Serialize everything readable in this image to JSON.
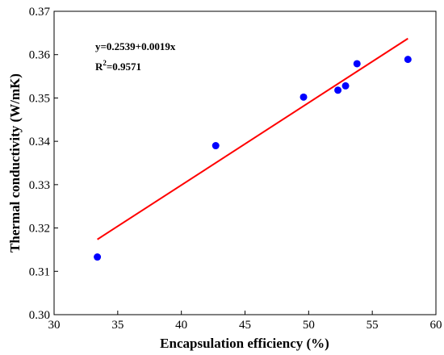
{
  "chart_data": {
    "type": "scatter",
    "xlabel": "Encapsulation efficiency (%)",
    "ylabel": "Thermal conductivity (W/mK)",
    "xlim": [
      30,
      60
    ],
    "ylim": [
      0.3,
      0.37
    ],
    "xticks": [
      "30",
      "35",
      "40",
      "45",
      "50",
      "55",
      "60"
    ],
    "yticks": [
      "0.30",
      "0.31",
      "0.32",
      "0.33",
      "0.34",
      "0.35",
      "0.36",
      "0.37"
    ],
    "grid": false,
    "points": [
      {
        "x": 33.4,
        "y": 0.3133
      },
      {
        "x": 42.7,
        "y": 0.339
      },
      {
        "x": 49.6,
        "y": 0.3502
      },
      {
        "x": 52.3,
        "y": 0.3518
      },
      {
        "x": 52.9,
        "y": 0.3528
      },
      {
        "x": 53.8,
        "y": 0.3579
      },
      {
        "x": 57.8,
        "y": 0.3589
      }
    ],
    "fit": {
      "intercept": 0.2539,
      "slope": 0.0019,
      "x_range": [
        33.4,
        57.8
      ]
    },
    "point_color": "#0000ff",
    "fit_color": "#ff0000",
    "annotation": {
      "equation": "y=0.2539+0.0019x",
      "r2_prefix": "R",
      "r2_sup": "2",
      "r2_value": "=0.9571"
    }
  }
}
